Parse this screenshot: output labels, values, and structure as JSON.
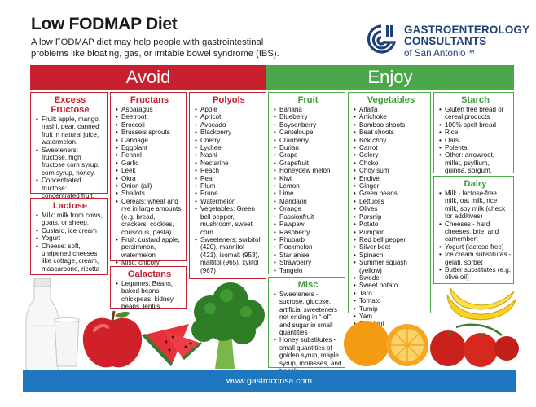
{
  "header": {
    "title": "Low FODMAP Diet",
    "subtitle": "A low FODMAP diet may help people with gastrointestinal problems like bloating, gas, or irritable bowel syndrome (IBS)."
  },
  "logo": {
    "line1": "GASTROENTEROLOGY",
    "line2": "CONSULTANTS",
    "line3": "of San Antonio™",
    "color": "#1f3f78"
  },
  "avoid": {
    "heading": "Avoid",
    "color": "#c8202e",
    "excess_fructose": {
      "title": "Excess Fructose",
      "items": [
        "Fruit: apple, mango, nashi, pear, canned fruit in natural juice, watermelon.",
        "Sweeteners: fructose, high fructose corn syrup, corn syrup, honey.",
        "Concentrated fructose: concentrated fruit, large servings of fruit, dried fruit, fruit juice."
      ]
    },
    "lactose": {
      "title": "Lactose",
      "items": [
        "Milk: milk from cows, goats, or sheep.",
        "Custard, ice cream",
        "Yogurt",
        "Cheese: soft, unripened cheeses like cottage, cream, mascarpone, ricotta"
      ]
    },
    "fructans": {
      "title": "Fructans",
      "items": [
        "Asparagus",
        "Beetroot",
        "Broccoli",
        "Brussels sprouts",
        "Cabbage",
        "Eggplant",
        "Fennel",
        "Garlic",
        "Leek",
        "Okra",
        "Onion (all)",
        "Shallots",
        "Cereals: wheat and rye in large amounts (e.g. bread, crackers, cookies, couscous, pasta)",
        "Fruit: custard apple, persimmon, watermelon",
        "Misc: chicory, dandelion, inulin"
      ]
    },
    "galactans": {
      "title": "Galactans",
      "items": [
        "Legumes: Beans, baked beans, chickpeas, kidney beans, lentils"
      ]
    },
    "polyols": {
      "title": "Polyols",
      "items": [
        "Apple",
        "Apricot",
        "Avocado",
        "Blackberry",
        "Cherry",
        "Lychee",
        "Nashi",
        "Nectarine",
        "Peach",
        "Pear",
        "Plum",
        "Prune",
        "Watermelon",
        "Vegetables: Green bell pepper, mushroom, sweet corn",
        "Sweeteners: sorbitol (420), mannitol (421), isomalt (953), maltitol (965), xylitol (967)"
      ]
    }
  },
  "enjoy": {
    "heading": "Enjoy",
    "color": "#4aa84a",
    "fruit": {
      "title": "Fruit",
      "items": [
        "Banana",
        "Blueberry",
        "Boysenberry",
        "Canteloupe",
        "Cranberry",
        "Durian",
        "Grape",
        "Grapefruit",
        "Honeydew melon",
        "Kiwi",
        "Lemon",
        "Lime",
        "Mandarin",
        "Orange",
        "Passionfruit",
        "Pawpaw",
        "Raspberry",
        "Rhubarb",
        "Rockmelon",
        "Star anise",
        "Strawberry",
        "Tangelo"
      ]
    },
    "misc": {
      "title": "Misc",
      "items": [
        "Sweeteners - sucrose, glucose, artificial sweeteners not ending in “-ol”, and sugar in small quantities",
        "Honey substitutes - small quantities of golden syrup, maple syrup, molasses, and treacle"
      ]
    },
    "vegetables": {
      "title": "Vegetables",
      "items": [
        "Alfalfa",
        "Artichoke",
        "Bamboo shoots",
        "Beat shoots",
        "Bok choy",
        "Carrot",
        "Celery",
        "Choko",
        "Choy sum",
        "Endive",
        "Ginger",
        "Green beans",
        "Lettuces",
        "Olives",
        "Parsnip",
        "Potato",
        "Pumpkin",
        "Red bell pepper",
        "Silver beet",
        "Spinach",
        "Summer squash (yellow)",
        "Swede",
        "Sweet potato",
        "Taro",
        "Tomato",
        "Turnip",
        "Yam",
        "Zucchini"
      ]
    },
    "starch": {
      "title": "Starch",
      "items": [
        "Gluten free bread or cereal products",
        "100% spelt bread",
        "Rice",
        "Oats",
        "Polenta",
        "Other: arrowroot, millet, psyllium, quinoa, sorgum, tapioca"
      ]
    },
    "dairy": {
      "title": "Dairy",
      "items": [
        "Milk - lactose-free milk, oat milk, rice milk, soy milk (check for additives)",
        "Cheeses - hard cheeses, brie, and camembert",
        "Yogurt (lactose free)",
        "Ice cream substitutes - gelati, sorbet",
        "Butter substitutes (e.g. olive oil)"
      ]
    }
  },
  "footer": {
    "url": "www.gastroconsa.com",
    "color": "#1f78bf"
  },
  "images": [
    "milk-bottle",
    "glass-of-milk",
    "red-apple",
    "watermelon-slices",
    "broccoli",
    "oranges",
    "bananas",
    "tomatoes"
  ]
}
